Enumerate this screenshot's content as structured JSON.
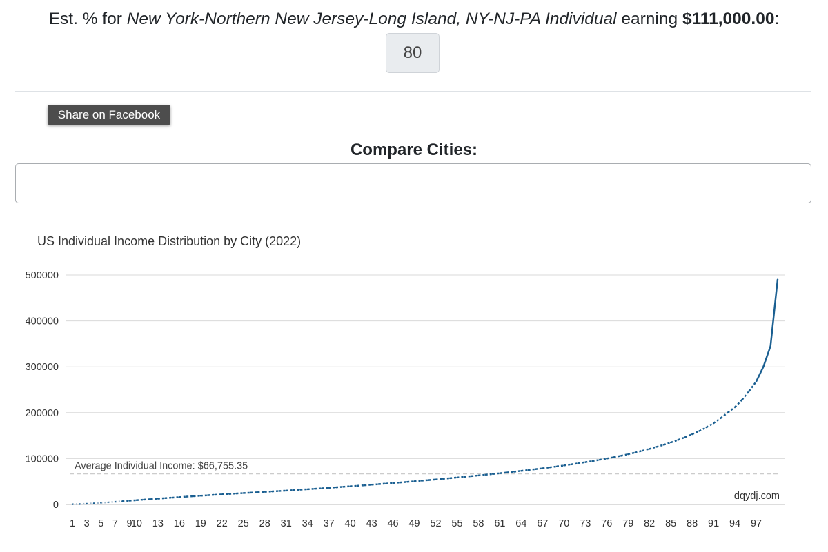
{
  "header": {
    "prefix": "Est. % for ",
    "location": "New York-Northern New Jersey-Long Island, NY-NJ-PA Individual",
    "middle": " earning ",
    "amount": "$111,000.00",
    "suffix": ":",
    "percentile": "80"
  },
  "share": {
    "facebook_label": "Share on Facebook"
  },
  "compare": {
    "title": "Compare Cities:",
    "input_value": "",
    "placeholder": ""
  },
  "chart_data": {
    "type": "line",
    "title": "US Individual Income Distribution by City (2022)",
    "xlabel": "",
    "ylabel": "",
    "ylim": [
      0,
      500000
    ],
    "yticks": [
      0,
      100000,
      200000,
      300000,
      400000,
      500000
    ],
    "xlim": [
      1,
      100
    ],
    "xticks": [
      1,
      3,
      5,
      7,
      9,
      10,
      13,
      16,
      19,
      22,
      25,
      28,
      31,
      34,
      37,
      40,
      43,
      46,
      49,
      52,
      55,
      58,
      61,
      64,
      67,
      70,
      73,
      76,
      79,
      82,
      85,
      88,
      91,
      94,
      97
    ],
    "grid": true,
    "series": [
      {
        "color": "#1a5f91",
        "points": [
          [
            1,
            500
          ],
          [
            2,
            800
          ],
          [
            3,
            1500
          ],
          [
            4,
            2500
          ],
          [
            5,
            3500
          ],
          [
            6,
            4600
          ],
          [
            7,
            5800
          ],
          [
            8,
            7000
          ],
          [
            9,
            8200
          ],
          [
            10,
            9400
          ],
          [
            11,
            10500
          ],
          [
            12,
            11600
          ],
          [
            13,
            12700
          ],
          [
            14,
            13800
          ],
          [
            15,
            14900
          ],
          [
            16,
            16000
          ],
          [
            17,
            17100
          ],
          [
            18,
            18100
          ],
          [
            19,
            19100
          ],
          [
            20,
            20100
          ],
          [
            21,
            21100
          ],
          [
            22,
            22100
          ],
          [
            23,
            23000
          ],
          [
            24,
            23900
          ],
          [
            25,
            24800
          ],
          [
            26,
            25700
          ],
          [
            27,
            26600
          ],
          [
            28,
            27500
          ],
          [
            29,
            28400
          ],
          [
            30,
            29300
          ],
          [
            31,
            30200
          ],
          [
            32,
            31200
          ],
          [
            33,
            32200
          ],
          [
            34,
            33200
          ],
          [
            35,
            34200
          ],
          [
            36,
            35200
          ],
          [
            37,
            36300
          ],
          [
            38,
            37400
          ],
          [
            39,
            38500
          ],
          [
            40,
            39600
          ],
          [
            41,
            40700
          ],
          [
            42,
            41900
          ],
          [
            43,
            43100
          ],
          [
            44,
            44300
          ],
          [
            45,
            45500
          ],
          [
            46,
            46700
          ],
          [
            47,
            47900
          ],
          [
            48,
            49200
          ],
          [
            49,
            50500
          ],
          [
            50,
            51800
          ],
          [
            51,
            53100
          ],
          [
            52,
            54500
          ],
          [
            53,
            55900
          ],
          [
            54,
            57300
          ],
          [
            55,
            58700
          ],
          [
            56,
            60200
          ],
          [
            57,
            61700
          ],
          [
            58,
            63200
          ],
          [
            59,
            64800
          ],
          [
            60,
            66400
          ],
          [
            61,
            68000
          ],
          [
            62,
            69700
          ],
          [
            63,
            71400
          ],
          [
            64,
            73200
          ],
          [
            65,
            75000
          ],
          [
            66,
            76900
          ],
          [
            67,
            78800
          ],
          [
            68,
            80800
          ],
          [
            69,
            82900
          ],
          [
            70,
            85000
          ],
          [
            71,
            87300
          ],
          [
            72,
            89600
          ],
          [
            73,
            92100
          ],
          [
            74,
            94600
          ],
          [
            75,
            97300
          ],
          [
            76,
            100000
          ],
          [
            77,
            103000
          ],
          [
            78,
            106000
          ],
          [
            79,
            109500
          ],
          [
            80,
            113000
          ],
          [
            81,
            117000
          ],
          [
            82,
            121000
          ],
          [
            83,
            125500
          ],
          [
            84,
            130000
          ],
          [
            85,
            135000
          ],
          [
            86,
            140500
          ],
          [
            87,
            146500
          ],
          [
            88,
            153000
          ],
          [
            89,
            160000
          ],
          [
            90,
            168000
          ],
          [
            91,
            177000
          ],
          [
            92,
            188000
          ],
          [
            93,
            200000
          ],
          [
            94,
            212000
          ],
          [
            95,
            228000
          ],
          [
            96,
            247000
          ],
          [
            97,
            268000
          ],
          [
            98,
            300000
          ],
          [
            99,
            345000
          ],
          [
            100,
            490000
          ]
        ]
      }
    ],
    "average": {
      "value": 66755.35,
      "label": "Average Individual Income: $66,755.35"
    },
    "credit": "dqydj.com",
    "colors": {
      "line": "#1a5f91",
      "grid": "#d9d9d9",
      "average_line": "#cccccc",
      "axis_text": "#333333"
    }
  }
}
